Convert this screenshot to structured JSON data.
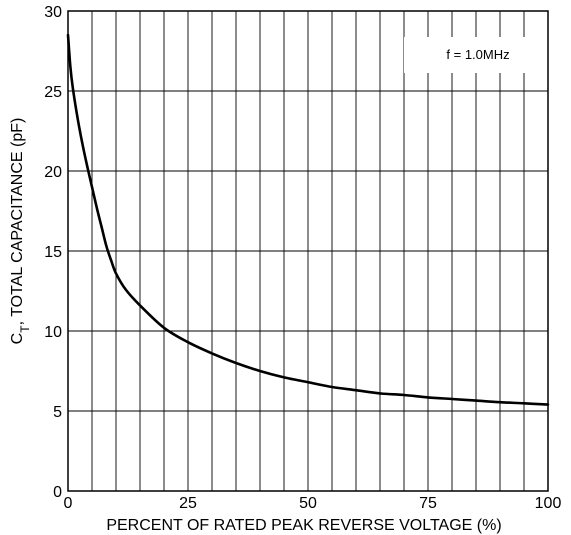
{
  "chart_data": {
    "type": "line",
    "title": "",
    "xlabel": "PERCENT OF RATED PEAK REVERSE VOLTAGE (%)",
    "ylabel_main": "C",
    "ylabel_sub": "T",
    "ylabel_rest": ", TOTAL CAPACITANCE (pF)",
    "xlim": [
      0,
      100
    ],
    "ylim": [
      0,
      30
    ],
    "x_ticks": [
      0,
      25,
      50,
      75,
      100
    ],
    "y_ticks": [
      0,
      5,
      10,
      15,
      20,
      25,
      30
    ],
    "x_tick_labels": [
      "0",
      "25",
      "50",
      "75",
      "100"
    ],
    "y_tick_labels": [
      "0",
      "5",
      "10",
      "15",
      "20",
      "25",
      "30"
    ],
    "x_grid_step": 5,
    "y_grid_step": 5,
    "grid": true,
    "annotation": "f = 1.0MHz",
    "series": [
      {
        "x": [
          0,
          0.5,
          1,
          2,
          3,
          4,
          5,
          6,
          7,
          8,
          9,
          10,
          12,
          15,
          20,
          25,
          30,
          35,
          40,
          45,
          50,
          55,
          60,
          65,
          70,
          75,
          80,
          85,
          90,
          95,
          100
        ],
        "y": [
          28.5,
          26.5,
          25.2,
          23.3,
          21.7,
          20.3,
          19.0,
          17.7,
          16.5,
          15.3,
          14.4,
          13.6,
          12.6,
          11.6,
          10.2,
          9.3,
          8.6,
          8.0,
          7.5,
          7.1,
          6.8,
          6.5,
          6.3,
          6.1,
          6.0,
          5.85,
          5.75,
          5.65,
          5.55,
          5.48,
          5.4
        ]
      }
    ]
  }
}
